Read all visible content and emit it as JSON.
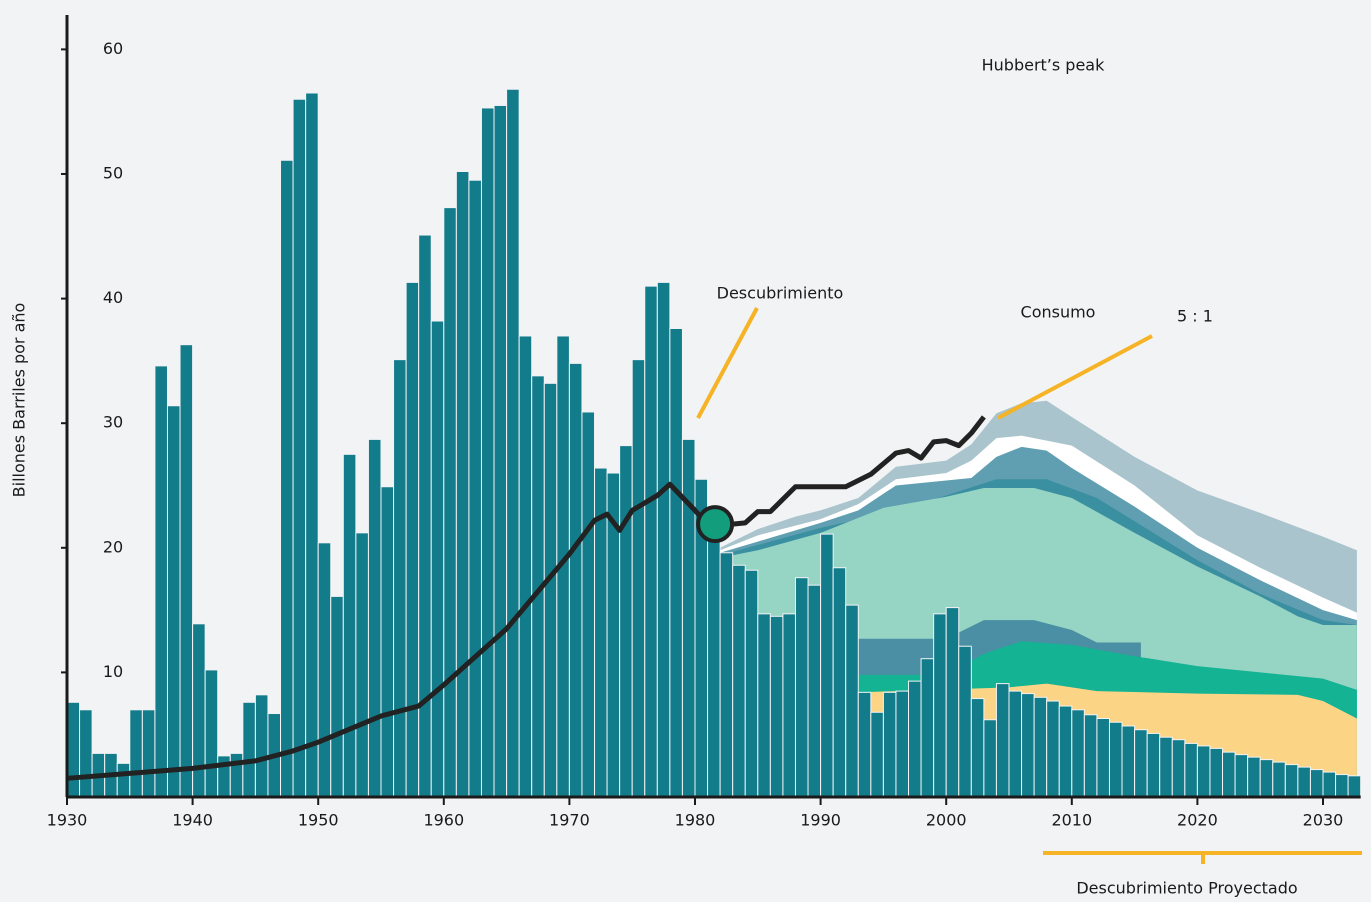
{
  "chart_data": {
    "type": "bar",
    "title": "Hubbert’s peak",
    "y_label": "Billones Barriles por año",
    "annotations": {
      "discovery": "Descubrimiento",
      "consumption": "Consumo",
      "ratio": "5 : 1",
      "projected": "Descubrimiento Proyectado"
    },
    "xlim": [
      1930,
      2033
    ],
    "ylim": [
      0,
      63
    ],
    "xticks": [
      1930,
      1940,
      1950,
      1960,
      1970,
      1980,
      1990,
      2000,
      2010,
      2020,
      2030
    ],
    "yticks": [
      10,
      20,
      30,
      40,
      50,
      60
    ],
    "bar_color": "#137c8b",
    "bar_x": [
      1930,
      1931,
      1932,
      1933,
      1934,
      1935,
      1936,
      1937,
      1938,
      1939,
      1940,
      1941,
      1942,
      1943,
      1944,
      1945,
      1946,
      1947,
      1948,
      1949,
      1950,
      1951,
      1952,
      1953,
      1954,
      1955,
      1956,
      1957,
      1958,
      1959,
      1960,
      1961,
      1962,
      1963,
      1964,
      1965,
      1966,
      1967,
      1968,
      1969,
      1970,
      1971,
      1972,
      1973,
      1974,
      1975,
      1976,
      1977,
      1978,
      1979,
      1980,
      1981,
      1982,
      1983,
      1984,
      1985,
      1986,
      1987,
      1988,
      1989,
      1990,
      1991,
      1992,
      1993,
      1994,
      1995,
      1996,
      1997,
      1998,
      1999,
      2000,
      2001,
      2002,
      2003,
      2004,
      2005,
      2006,
      2007,
      2008,
      2009,
      2010,
      2011,
      2012,
      2013,
      2014,
      2015,
      2016,
      2017,
      2018,
      2019,
      2020,
      2021,
      2022,
      2023,
      2024,
      2025,
      2026,
      2027,
      2028,
      2029,
      2030,
      2031,
      2032
    ],
    "values": [
      7.6,
      7.0,
      3.5,
      3.5,
      2.7,
      7.0,
      7.0,
      34.6,
      31.4,
      36.3,
      13.9,
      10.2,
      3.3,
      3.5,
      7.6,
      8.2,
      6.7,
      51.1,
      56.0,
      56.5,
      20.4,
      16.1,
      27.5,
      21.2,
      28.7,
      24.9,
      35.1,
      41.3,
      45.1,
      38.2,
      47.3,
      50.2,
      49.5,
      55.3,
      55.5,
      56.8,
      37.0,
      33.8,
      33.2,
      37.0,
      34.8,
      30.9,
      26.4,
      26.0,
      28.2,
      35.1,
      41.0,
      41.3,
      37.6,
      28.7,
      25.5,
      21.5,
      19.6,
      18.6,
      18.2,
      14.7,
      14.5,
      14.7,
      17.6,
      17.0,
      21.1,
      18.4,
      15.4,
      8.4,
      6.8,
      8.4,
      8.5,
      9.3,
      11.1,
      14.7,
      15.2,
      12.1,
      7.9,
      6.2,
      9.1,
      8.5,
      8.3,
      8.0,
      7.7,
      7.3,
      7.0,
      6.6,
      6.3,
      6.0,
      5.7,
      5.4,
      5.1,
      4.8,
      4.6,
      4.3,
      4.1,
      3.9,
      3.6,
      3.4,
      3.2,
      3.0,
      2.8,
      2.6,
      2.4,
      2.2,
      2.0,
      1.8,
      1.7
    ],
    "consumption": {
      "color": "#222222",
      "x": [
        1930,
        1935,
        1940,
        1945,
        1948,
        1950,
        1955,
        1958,
        1960,
        1965,
        1970,
        1972,
        1973,
        1974,
        1975,
        1977,
        1978,
        1980,
        1981,
        1983,
        1984,
        1985,
        1986,
        1988,
        1992,
        1994,
        1996,
        1997,
        1998,
        1999,
        2000,
        2001,
        2002,
        2003
      ],
      "values": [
        1.5,
        1.9,
        2.3,
        2.9,
        3.7,
        4.4,
        6.5,
        7.3,
        9.0,
        13.5,
        19.5,
        22.2,
        22.7,
        21.4,
        23.0,
        24.2,
        25.1,
        23.0,
        21.9,
        21.9,
        22.0,
        22.9,
        22.9,
        24.9,
        24.9,
        25.9,
        27.6,
        27.8,
        27.2,
        28.5,
        28.6,
        28.2,
        29.2,
        30.5
      ]
    },
    "peak_point": {
      "x": 1981.6,
      "y": 21.9,
      "color": "#129e7c"
    },
    "areas": [
      {
        "color": "#a9c4cc",
        "x": [
          1982,
          1985,
          1988,
          1990,
          1993,
          1996,
          2000,
          2002,
          2004,
          2006,
          2008,
          2010,
          2015,
          2020,
          2025,
          2030,
          2032.7
        ],
        "values": [
          20.0,
          21.5,
          22.5,
          23.0,
          24.0,
          26.5,
          27.0,
          28.3,
          30.8,
          31.6,
          31.8,
          30.5,
          27.3,
          24.6,
          22.8,
          20.9,
          19.8
        ]
      },
      {
        "color": "#ffffff",
        "x": [
          1982,
          1985,
          1990,
          1993,
          1996,
          2000,
          2002,
          2004,
          2006,
          2010,
          2015,
          2020,
          2025,
          2030,
          2032.7
        ],
        "values": [
          19.8,
          21.0,
          22.3,
          23.5,
          25.5,
          26.0,
          27.0,
          28.8,
          29.0,
          28.2,
          25.0,
          21.0,
          18.4,
          16.0,
          14.8
        ]
      },
      {
        "color": "#5f9fb1",
        "x": [
          1982,
          1985,
          1990,
          1993,
          1996,
          2000,
          2002,
          2004,
          2006,
          2008,
          2010,
          2015,
          2020,
          2025,
          2030,
          2032.7
        ],
        "values": [
          19.6,
          20.5,
          22.0,
          23.0,
          25.0,
          25.4,
          25.6,
          27.3,
          28.1,
          27.8,
          26.4,
          23.3,
          20.0,
          17.4,
          15.0,
          14.2
        ]
      },
      {
        "color": "#3a8fa0",
        "x": [
          1982,
          1990,
          1995,
          2000,
          2004,
          2008,
          2012,
          2020,
          2025,
          2030,
          2032.7
        ],
        "values": [
          19.4,
          21.6,
          22.7,
          24.2,
          25.5,
          25.5,
          24.0,
          19.0,
          16.3,
          14.2,
          13.8
        ]
      },
      {
        "color": "#96d4c4",
        "x": [
          1982,
          1985,
          1990,
          1995,
          2000,
          2003,
          2007,
          2010,
          2015,
          2020,
          2025,
          2028,
          2030,
          2032.7
        ],
        "values": [
          19.2,
          19.8,
          21.2,
          23.2,
          24.1,
          24.8,
          24.8,
          24.0,
          21.2,
          18.5,
          16.1,
          14.5,
          13.8,
          13.8
        ]
      },
      {
        "color": "#4a8fa3",
        "x": [
          1993,
          2000,
          2003,
          2007,
          2010,
          2012,
          2015.5
        ],
        "values": [
          12.7,
          12.7,
          14.2,
          14.2,
          13.4,
          12.4,
          12.4
        ]
      },
      {
        "color": "#13b394",
        "x": [
          1990,
          1993,
          2000,
          2003,
          2006,
          2010,
          2015,
          2020,
          2025,
          2030,
          2032.7
        ],
        "values": [
          9.8,
          9.8,
          9.8,
          11.5,
          12.5,
          12.2,
          11.3,
          10.5,
          10.0,
          9.5,
          8.6
        ]
      },
      {
        "color": "#fcd486",
        "x": [
          1993,
          2005,
          2008,
          2012,
          2020,
          2028,
          2030,
          2032.7
        ],
        "values": [
          8.4,
          8.8,
          9.1,
          8.5,
          8.3,
          8.2,
          7.7,
          6.3
        ]
      }
    ]
  }
}
